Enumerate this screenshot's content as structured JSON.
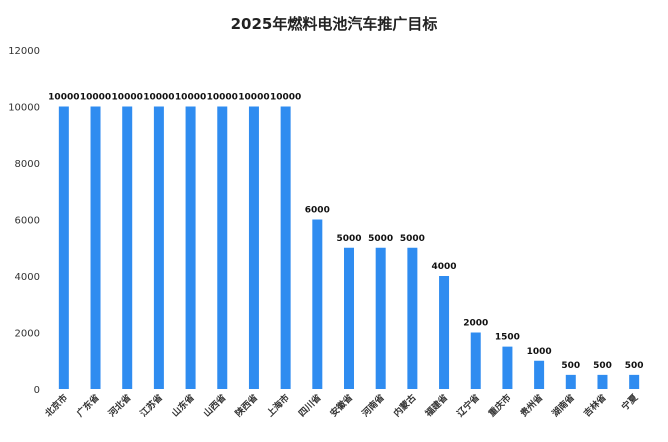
{
  "chart_data": {
    "type": "bar",
    "title": "2025年燃料电池汽车推广目标",
    "xlabel": "",
    "ylabel": "",
    "categories": [
      "北京市",
      "广东省",
      "河北省",
      "江苏省",
      "山东省",
      "山西省",
      "陕西省",
      "上海市",
      "四川省",
      "安徽省",
      "河南省",
      "内蒙古",
      "福建省",
      "辽宁省",
      "重庆市",
      "贵州省",
      "湖南省",
      "吉林省",
      "宁夏"
    ],
    "values": [
      10000,
      10000,
      10000,
      10000,
      10000,
      10000,
      10000,
      10000,
      6000,
      5000,
      5000,
      5000,
      4000,
      2000,
      1500,
      1000,
      500,
      500,
      500
    ],
    "data_labels": [
      "10000",
      "10000",
      "10000",
      "10000",
      "10000",
      "10000",
      "10000",
      "10000",
      "6000",
      "5000",
      "5000",
      "5000",
      "4000",
      "2000",
      "1500",
      "1000",
      "500",
      "500",
      "500"
    ],
    "ylim": [
      0,
      12000
    ],
    "yticks": [
      0,
      2000,
      4000,
      6000,
      8000,
      10000,
      12000
    ],
    "grid": false,
    "legend": "none",
    "bar_color": "#2f8cf0"
  }
}
